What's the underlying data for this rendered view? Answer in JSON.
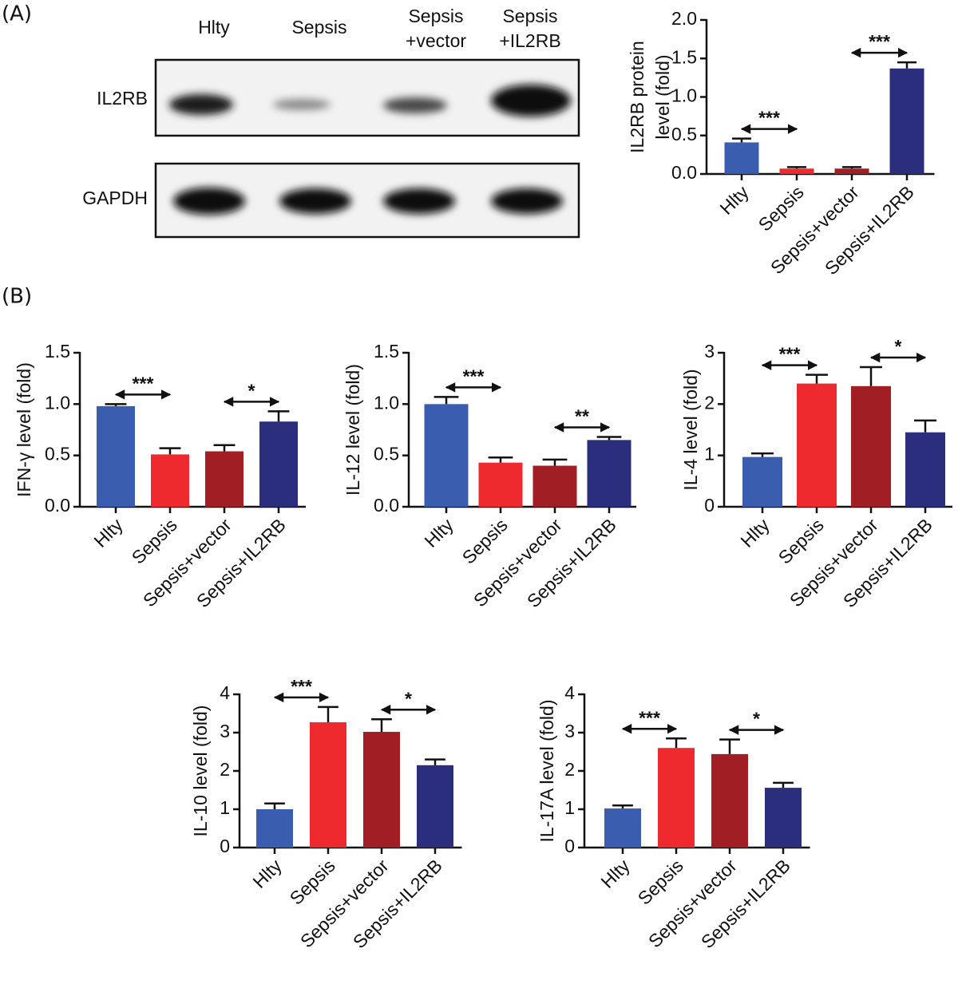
{
  "panel_labels": [
    "(A)",
    "(B)"
  ],
  "blot": {
    "lane_labels": [
      [
        "Hlty"
      ],
      [
        "Sepsis"
      ],
      [
        "Sepsis",
        "+vector"
      ],
      [
        "Sepsis",
        "+IL2RB"
      ]
    ],
    "row_labels": [
      "IL2RB",
      "GAPDH"
    ]
  },
  "chart_data": [
    {
      "type": "bar",
      "y_label": [
        "IL2RB protein",
        "level (fold)"
      ],
      "categories": [
        "Hlty",
        "Sepsis",
        "Sepsis+vector",
        "Sepsis+IL2RB"
      ],
      "values": [
        0.41,
        0.07,
        0.07,
        1.37
      ],
      "errors": [
        0.05,
        0.02,
        0.02,
        0.08
      ],
      "colors": [
        "#3b5db0",
        "#ee2a2e",
        "#a11e24",
        "#2b2d7d"
      ],
      "ylim": [
        0,
        2
      ],
      "yticks": [
        {
          "value": 0,
          "label": "0.0"
        },
        {
          "value": 0.5,
          "label": "0.5"
        },
        {
          "value": 1,
          "label": "1.0"
        },
        {
          "value": 1.5,
          "label": "1.5"
        },
        {
          "value": 2,
          "label": "2.0"
        }
      ],
      "annotations": [
        "***",
        "***"
      ]
    },
    {
      "type": "bar",
      "y_label": "IFN-γ level (fold)",
      "categories": [
        "Hlty",
        "Sepsis",
        "Sepsis+vector",
        "Sepsis+IL2RB"
      ],
      "values": [
        0.98,
        0.51,
        0.54,
        0.83
      ],
      "errors": [
        0.02,
        0.06,
        0.06,
        0.1
      ],
      "colors": [
        "#3b5db0",
        "#ee2a2e",
        "#a11e24",
        "#2b2d7d"
      ],
      "ylim": [
        0,
        1.5
      ],
      "yticks": [
        {
          "value": 0,
          "label": "0.0"
        },
        {
          "value": 0.5,
          "label": "0.5"
        },
        {
          "value": 1,
          "label": "1.0"
        },
        {
          "value": 1.5,
          "label": "1.5"
        }
      ],
      "annotations": [
        "***",
        "*"
      ]
    },
    {
      "type": "bar",
      "y_label": "IL-12 level (fold)",
      "categories": [
        "Hlty",
        "Sepsis",
        "Sepsis+vector",
        "Sepsis+IL2RB"
      ],
      "values": [
        1.0,
        0.43,
        0.4,
        0.65
      ],
      "errors": [
        0.07,
        0.05,
        0.06,
        0.03
      ],
      "colors": [
        "#3b5db0",
        "#ee2a2e",
        "#a11e24",
        "#2b2d7d"
      ],
      "ylim": [
        0,
        1.5
      ],
      "yticks": [
        {
          "value": 0,
          "label": "0.0"
        },
        {
          "value": 0.5,
          "label": "0.5"
        },
        {
          "value": 1,
          "label": "1.0"
        },
        {
          "value": 1.5,
          "label": "1.5"
        }
      ],
      "annotations": [
        "***",
        "**"
      ]
    },
    {
      "type": "bar",
      "y_label": "IL-4 level (fold)",
      "categories": [
        "Hlty",
        "Sepsis",
        "Sepsis+vector",
        "Sepsis+IL2RB"
      ],
      "values": [
        0.97,
        2.4,
        2.35,
        1.45
      ],
      "errors": [
        0.07,
        0.17,
        0.37,
        0.23
      ],
      "colors": [
        "#3b5db0",
        "#ee2a2e",
        "#a11e24",
        "#2b2d7d"
      ],
      "ylim": [
        0,
        3
      ],
      "yticks": [
        0,
        1,
        2,
        3
      ],
      "annotations": [
        "***",
        "*"
      ]
    },
    {
      "type": "bar",
      "y_label": "IL-10 level (fold)",
      "categories": [
        "Hlty",
        "Sepsis",
        "Sepsis+vector",
        "Sepsis+IL2RB"
      ],
      "values": [
        1.0,
        3.27,
        3.02,
        2.15
      ],
      "errors": [
        0.15,
        0.4,
        0.33,
        0.15
      ],
      "colors": [
        "#3b5db0",
        "#ee2a2e",
        "#a11e24",
        "#2b2d7d"
      ],
      "ylim": [
        0,
        4
      ],
      "yticks": [
        0,
        1,
        2,
        3,
        4
      ],
      "annotations": [
        "***",
        "*"
      ]
    },
    {
      "type": "bar",
      "y_label": "IL-17A level (fold)",
      "categories": [
        "Hlty",
        "Sepsis",
        "Sepsis+vector",
        "Sepsis+IL2RB"
      ],
      "values": [
        1.02,
        2.6,
        2.44,
        1.56
      ],
      "errors": [
        0.08,
        0.25,
        0.38,
        0.13
      ],
      "colors": [
        "#3b5db0",
        "#ee2a2e",
        "#a11e24",
        "#2b2d7d"
      ],
      "ylim": [
        0,
        4
      ],
      "yticks": [
        0,
        1,
        2,
        3,
        4
      ],
      "annotations": [
        "***",
        "*"
      ]
    }
  ]
}
